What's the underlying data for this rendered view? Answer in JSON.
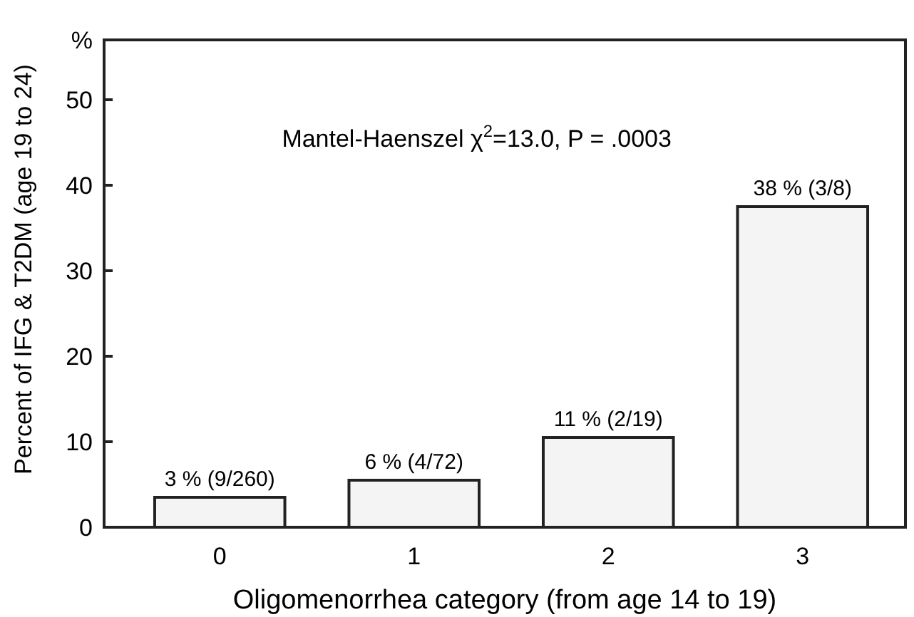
{
  "chart_data": {
    "type": "bar",
    "xlabel": "Oligomenorrhea category (from age 14 to 19)",
    "ylabel": "Percent of IFG & T2DM (age 19 to 24)",
    "categories": [
      "0",
      "1",
      "2",
      "3"
    ],
    "values": [
      3.5,
      5.5,
      10.5,
      37.5
    ],
    "value_labels": [
      "3 % (9/260)",
      "6 % (4/72)",
      "11 % (2/19)",
      "38 % (3/8)"
    ],
    "color": "#f4f4f4",
    "ylim": [
      0,
      57
    ],
    "yticks": [
      0,
      10,
      20,
      30,
      40,
      50,
      {
        "value": 57,
        "label": "%"
      }
    ],
    "annotations": [
      "Mantel-Haenszel χ$^{2}$=13.0, P = .0003"
    ],
    "grid": false
  }
}
